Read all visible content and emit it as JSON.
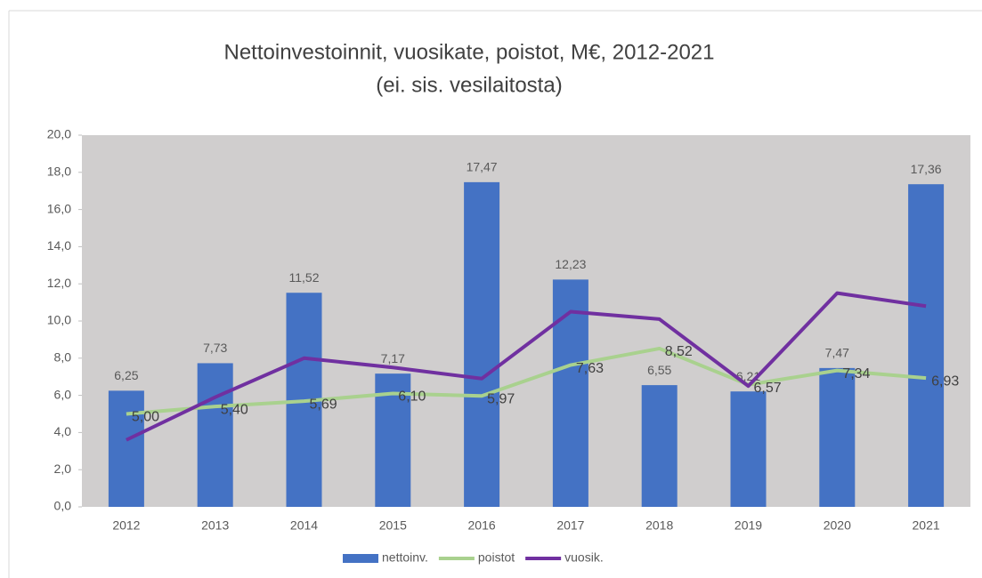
{
  "chart_data": {
    "type": "bar",
    "title": "Nettoinvestoinnit, vuosikate, poistot, M€, 2012-2021",
    "subtitle": "(ei. sis. vesilaitosta)",
    "categories": [
      "2012",
      "2013",
      "2014",
      "2015",
      "2016",
      "2017",
      "2018",
      "2019",
      "2020",
      "2021"
    ],
    "series": [
      {
        "name": "nettoinv.",
        "type": "bar",
        "color": "#4472c4",
        "values": [
          6.25,
          7.73,
          11.52,
          7.17,
          17.47,
          12.23,
          6.55,
          6.21,
          7.47,
          17.36
        ],
        "value_labels": [
          "6,25",
          "7,73",
          "11,52",
          "7,17",
          "17,47",
          "12,23",
          "6,55",
          "6,21",
          "7,47",
          "17,36"
        ]
      },
      {
        "name": "poistot",
        "type": "line",
        "color": "#a9d18e",
        "values": [
          5.0,
          5.4,
          5.69,
          6.1,
          5.97,
          7.63,
          8.52,
          6.57,
          7.34,
          6.93
        ],
        "value_labels": [
          "5,00",
          "5,40",
          "5,69",
          "6,10",
          "5,97",
          "7,63",
          "8,52",
          "6,57",
          "7,34",
          "6,93"
        ]
      },
      {
        "name": "vuosik.",
        "type": "line",
        "color": "#7030a0",
        "values": [
          3.6,
          5.9,
          8.0,
          7.5,
          6.9,
          10.5,
          10.1,
          6.5,
          11.5,
          10.8
        ]
      }
    ],
    "ylim": [
      0,
      20
    ],
    "yticks": [
      {
        "value": 0,
        "label": "0,0"
      },
      {
        "value": 2,
        "label": "2,0"
      },
      {
        "value": 4,
        "label": "4,0"
      },
      {
        "value": 6,
        "label": "6,0"
      },
      {
        "value": 8,
        "label": "8,0"
      },
      {
        "value": 10,
        "label": "10,0"
      },
      {
        "value": 12,
        "label": "12,0"
      },
      {
        "value": 14,
        "label": "14,0"
      },
      {
        "value": 16,
        "label": "16,0"
      },
      {
        "value": 18,
        "label": "18,0"
      },
      {
        "value": 20,
        "label": "20,0"
      }
    ],
    "grid": false,
    "legend": "bottom"
  }
}
